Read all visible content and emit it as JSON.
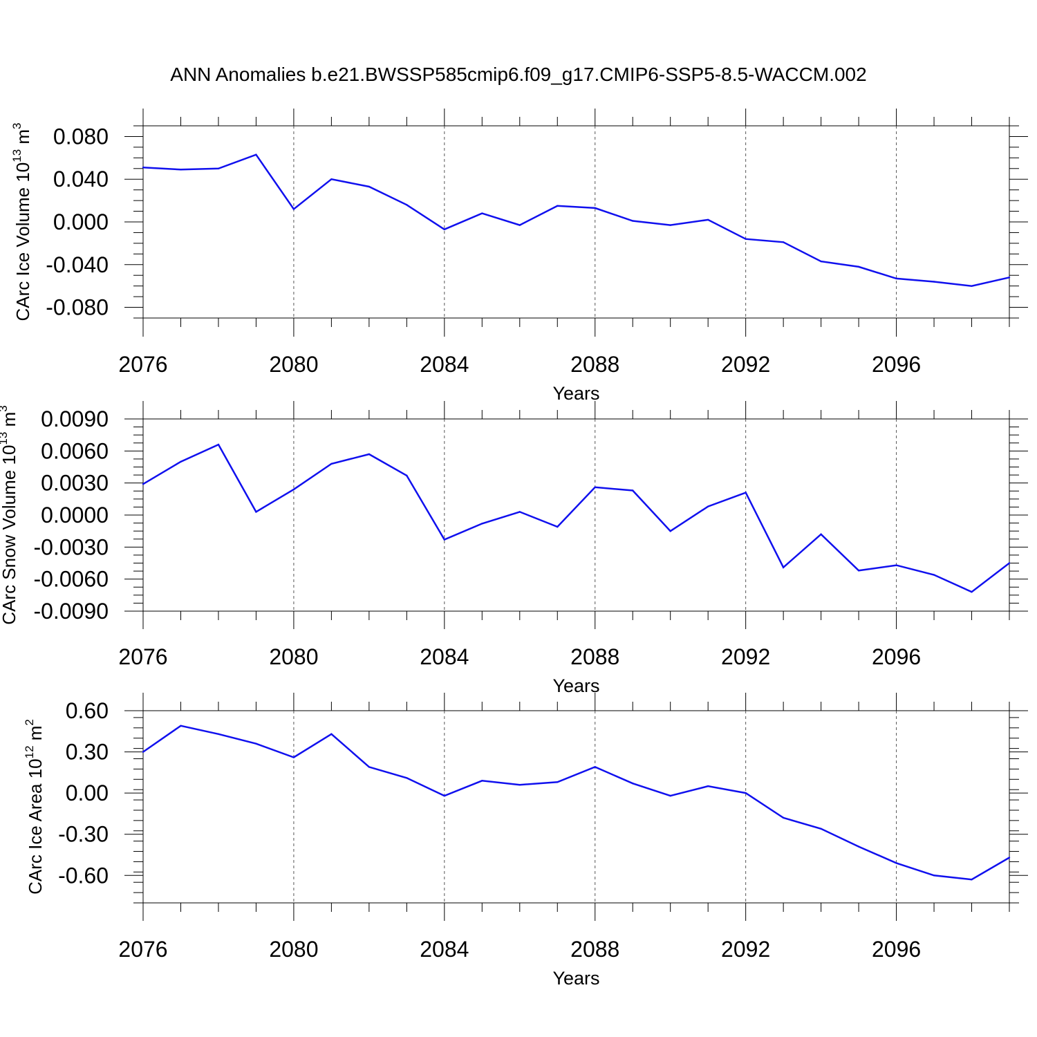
{
  "title": "ANN Anomalies b.e21.BWSSP585cmip6.f09_g17.CMIP6-SSP5-8.5-WACCM.002",
  "colors": {
    "line": "#1010ee",
    "axis": "#000000",
    "grid": "#555555",
    "background": "#ffffff"
  },
  "chart_data": [
    {
      "type": "line",
      "xlabel": "Years",
      "ylabel_main": "CArc Ice Volume 10",
      "ylabel_exp": "13",
      "ylabel_unit": " m",
      "ylabel_unit_exp": "3",
      "xlim": [
        2076,
        2099
      ],
      "ylim": [
        -0.09,
        0.09
      ],
      "x_ticks": [
        2076,
        2080,
        2084,
        2088,
        2092,
        2096
      ],
      "x_tick_labels": [
        "2076",
        "2080",
        "2084",
        "2088",
        "2092",
        "2096"
      ],
      "y_ticks": [
        0.08,
        0.04,
        0.0,
        -0.04,
        -0.08
      ],
      "y_tick_labels": [
        "0.080",
        "0.040",
        "0.000",
        "-0.040",
        "-0.080"
      ],
      "grid": "vertical dashed at major x ticks",
      "x": [
        2076,
        2077,
        2078,
        2079,
        2080,
        2081,
        2082,
        2083,
        2084,
        2085,
        2086,
        2087,
        2088,
        2089,
        2090,
        2091,
        2092,
        2093,
        2094,
        2095,
        2096,
        2097,
        2098,
        2099
      ],
      "y": [
        0.051,
        0.049,
        0.05,
        0.063,
        0.012,
        0.04,
        0.033,
        0.016,
        -0.007,
        0.008,
        -0.003,
        0.015,
        0.013,
        0.001,
        -0.003,
        0.002,
        -0.016,
        -0.019,
        -0.037,
        -0.042,
        -0.053,
        -0.056,
        -0.06,
        -0.052
      ]
    },
    {
      "type": "line",
      "xlabel": "Years",
      "ylabel_main": "CArc Snow Volume 10",
      "ylabel_exp": "13",
      "ylabel_unit": " m",
      "ylabel_unit_exp": "3",
      "xlim": [
        2076,
        2099
      ],
      "ylim": [
        -0.009,
        0.009
      ],
      "x_ticks": [
        2076,
        2080,
        2084,
        2088,
        2092,
        2096
      ],
      "x_tick_labels": [
        "2076",
        "2080",
        "2084",
        "2088",
        "2092",
        "2096"
      ],
      "y_ticks": [
        0.009,
        0.006,
        0.003,
        0.0,
        -0.003,
        -0.006,
        -0.009
      ],
      "y_tick_labels": [
        "0.0090",
        "0.0060",
        "0.0030",
        "0.0000",
        "-0.0030",
        "-0.0060",
        "-0.0090"
      ],
      "grid": "vertical dashed at major x ticks",
      "x": [
        2076,
        2077,
        2078,
        2079,
        2080,
        2081,
        2082,
        2083,
        2084,
        2085,
        2086,
        2087,
        2088,
        2089,
        2090,
        2091,
        2092,
        2093,
        2094,
        2095,
        2096,
        2097,
        2098,
        2099
      ],
      "y": [
        0.0029,
        0.005,
        0.0066,
        0.0003,
        0.0024,
        0.0048,
        0.0057,
        0.0037,
        -0.0023,
        -0.0008,
        0.0003,
        -0.0011,
        0.0026,
        0.0023,
        -0.0015,
        0.0008,
        0.0021,
        -0.0049,
        -0.0018,
        -0.0052,
        -0.0047,
        -0.0056,
        -0.0072,
        -0.0045
      ]
    },
    {
      "type": "line",
      "xlabel": "Years",
      "ylabel_main": "CArc Ice Area 10",
      "ylabel_exp": "12",
      "ylabel_unit": " m",
      "ylabel_unit_exp": "2",
      "xlim": [
        2076,
        2099
      ],
      "ylim": [
        -0.8,
        0.6
      ],
      "x_ticks": [
        2076,
        2080,
        2084,
        2088,
        2092,
        2096
      ],
      "x_tick_labels": [
        "2076",
        "2080",
        "2084",
        "2088",
        "2092",
        "2096"
      ],
      "y_ticks": [
        0.6,
        0.3,
        0.0,
        -0.3,
        -0.6
      ],
      "y_tick_labels": [
        "0.60",
        "0.30",
        "0.00",
        "-0.30",
        "-0.60"
      ],
      "grid": "vertical dashed at major x ticks",
      "x": [
        2076,
        2077,
        2078,
        2079,
        2080,
        2081,
        2082,
        2083,
        2084,
        2085,
        2086,
        2087,
        2088,
        2089,
        2090,
        2091,
        2092,
        2093,
        2094,
        2095,
        2096,
        2097,
        2098,
        2099
      ],
      "y": [
        0.3,
        0.49,
        0.43,
        0.36,
        0.26,
        0.43,
        0.19,
        0.11,
        -0.02,
        0.09,
        0.06,
        0.08,
        0.19,
        0.07,
        -0.02,
        0.05,
        0.0,
        -0.18,
        -0.26,
        -0.39,
        -0.51,
        -0.6,
        -0.63,
        -0.47
      ]
    }
  ]
}
